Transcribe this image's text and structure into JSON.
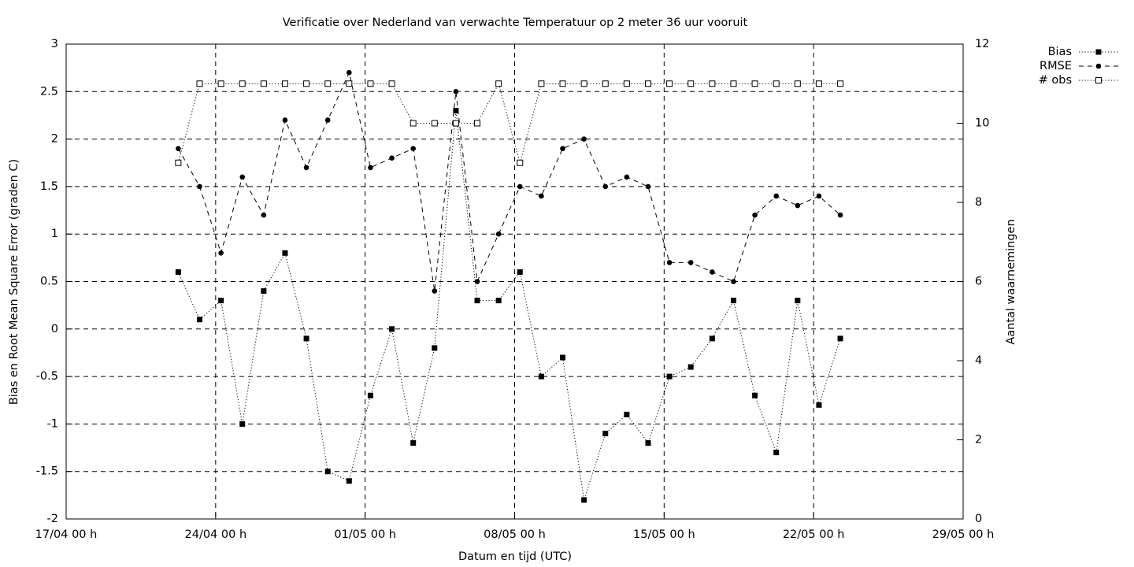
{
  "chart_data": {
    "type": "line",
    "title": "Verificatie over Nederland van verwachte Temperatuur op 2 meter 36 uur vooruit",
    "x_label": "Datum en tijd (UTC)",
    "y_label": "Bias en Root Mean Square Error (graden C)",
    "y2_label": "Aantal waarnemingen",
    "x": [
      "22/04 06 h",
      "23/04 06 h",
      "24/04 06 h",
      "25/04 06 h",
      "26/04 06 h",
      "27/04 06 h",
      "28/04 06 h",
      "29/04 06 h",
      "30/04 06 h",
      "01/05 06 h",
      "02/05 06 h",
      "03/05 06 h",
      "04/05 06 h",
      "05/05 06 h",
      "06/05 06 h",
      "07/05 06 h",
      "08/05 06 h",
      "09/05 06 h",
      "10/05 06 h",
      "11/05 06 h",
      "12/05 06 h",
      "13/05 06 h",
      "14/05 06 h",
      "15/05 06 h",
      "16/05 06 h",
      "17/05 06 h",
      "18/05 06 h",
      "19/05 06 h",
      "20/05 06 h",
      "21/05 06 h",
      "22/05 06 h",
      "23/05 06 h"
    ],
    "xlim": [
      "17/04 00 h",
      "29/05 00 h"
    ],
    "xticks": [
      "17/04 00 h",
      "24/04 00 h",
      "01/05 00 h",
      "08/05 00 h",
      "15/05 00 h",
      "22/05 00 h",
      "29/05 00 h"
    ],
    "ylim": [
      -2,
      3
    ],
    "yticks": [
      -2,
      -1.5,
      -1,
      -0.5,
      0,
      0.5,
      1,
      1.5,
      2,
      2.5,
      3
    ],
    "y2lim": [
      0,
      12
    ],
    "y2ticks": [
      0,
      2,
      4,
      6,
      8,
      10,
      12
    ],
    "grid": true,
    "legend": "outside-top-right",
    "series": [
      {
        "name": "Bias",
        "color": "#000000",
        "line": "dotted",
        "marker": "filled-square",
        "values": [
          0.6,
          0.1,
          0.3,
          -1.0,
          0.4,
          0.8,
          -0.1,
          -1.5,
          -1.6,
          -0.7,
          0.0,
          -1.2,
          -0.2,
          2.3,
          0.3,
          0.3,
          0.6,
          -0.5,
          -0.3,
          -1.8,
          -1.1,
          -0.9,
          -1.2,
          -0.5,
          -0.4,
          -0.1,
          0.3,
          -0.7,
          -1.3,
          0.3,
          -0.8,
          -0.1
        ]
      },
      {
        "name": "RMSE",
        "color": "#000000",
        "line": "dashed",
        "marker": "filled-circle",
        "values": [
          1.9,
          1.5,
          0.8,
          1.6,
          1.2,
          2.2,
          1.7,
          2.2,
          2.7,
          1.7,
          1.8,
          1.9,
          0.4,
          2.5,
          0.5,
          1.0,
          1.5,
          1.4,
          1.9,
          2.0,
          1.5,
          1.6,
          1.5,
          0.7,
          0.7,
          0.6,
          0.5,
          1.2,
          1.4,
          1.3,
          1.4,
          1.2
        ]
      },
      {
        "name": "# obs",
        "color": "#000000",
        "line": "dotted",
        "marker": "open-square",
        "axis": "y2",
        "values": [
          9,
          11,
          11,
          11,
          11,
          11,
          11,
          11,
          11,
          11,
          11,
          10,
          10,
          10,
          10,
          11,
          9,
          11,
          11,
          11,
          11,
          11,
          11,
          11,
          11,
          11,
          11,
          11,
          11,
          11,
          11,
          11
        ]
      }
    ]
  }
}
